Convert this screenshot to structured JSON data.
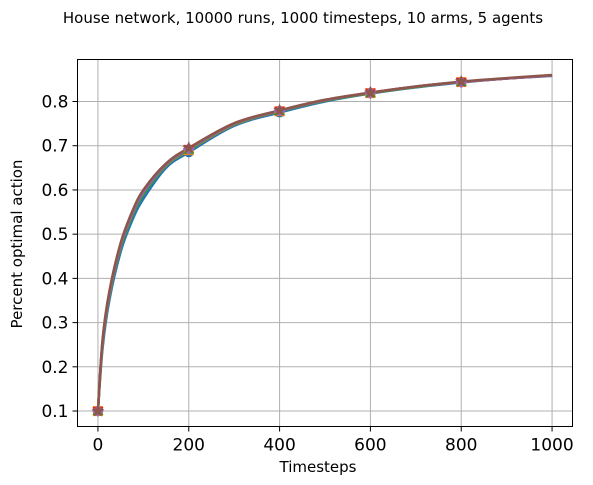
{
  "chart_data": {
    "type": "line",
    "title": "House network, 10000 runs, 1000 timesteps, 10 arms, 5 agents",
    "xlabel": "Timesteps",
    "ylabel": "Percent optimal action",
    "xlim": [
      -45,
      1045
    ],
    "ylim": [
      0.065,
      0.895
    ],
    "xticks": [
      0,
      200,
      400,
      600,
      800,
      1000
    ],
    "yticks": [
      0.1,
      0.2,
      0.3,
      0.4,
      0.5,
      0.6,
      0.7,
      0.8
    ],
    "xtick_labels": [
      "0",
      "200",
      "400",
      "600",
      "800",
      "1000"
    ],
    "ytick_labels": [
      "0.1",
      "0.2",
      "0.3",
      "0.4",
      "0.5",
      "0.6",
      "0.7",
      "0.8"
    ],
    "grid": true,
    "legend": false,
    "x": [
      0,
      10,
      25,
      50,
      75,
      100,
      150,
      200,
      300,
      400,
      500,
      600,
      700,
      800,
      900,
      1000
    ],
    "series": [
      {
        "color": "#1f77b4",
        "values": [
          0.1,
          0.24,
          0.35,
          0.46,
          0.53,
          0.58,
          0.65,
          0.685,
          0.745,
          0.775,
          0.8,
          0.818,
          0.832,
          0.843,
          0.852,
          0.858
        ],
        "marker": "o"
      },
      {
        "color": "#ff7f0e",
        "values": [
          0.1,
          0.25,
          0.36,
          0.47,
          0.54,
          0.59,
          0.655,
          0.69,
          0.748,
          0.778,
          0.802,
          0.819,
          0.833,
          0.844,
          0.852,
          0.859
        ],
        "marker": "s"
      },
      {
        "color": "#2ca02c",
        "values": [
          0.1,
          0.25,
          0.36,
          0.47,
          0.54,
          0.59,
          0.656,
          0.691,
          0.749,
          0.778,
          0.802,
          0.819,
          0.833,
          0.844,
          0.852,
          0.859
        ],
        "marker": "^"
      },
      {
        "color": "#d62728",
        "values": [
          0.1,
          0.255,
          0.365,
          0.475,
          0.545,
          0.595,
          0.658,
          0.693,
          0.75,
          0.779,
          0.803,
          0.82,
          0.834,
          0.844,
          0.852,
          0.859
        ],
        "marker": "v"
      },
      {
        "color": "#9467bd",
        "values": [
          0.1,
          0.255,
          0.365,
          0.475,
          0.545,
          0.595,
          0.658,
          0.693,
          0.75,
          0.779,
          0.803,
          0.82,
          0.834,
          0.844,
          0.852,
          0.859
        ],
        "marker": "D"
      },
      {
        "color": "#8c564b",
        "values": [
          0.1,
          0.26,
          0.37,
          0.48,
          0.55,
          0.6,
          0.66,
          0.695,
          0.751,
          0.78,
          0.804,
          0.82,
          0.834,
          0.845,
          0.853,
          0.86
        ],
        "marker": "*"
      }
    ]
  }
}
